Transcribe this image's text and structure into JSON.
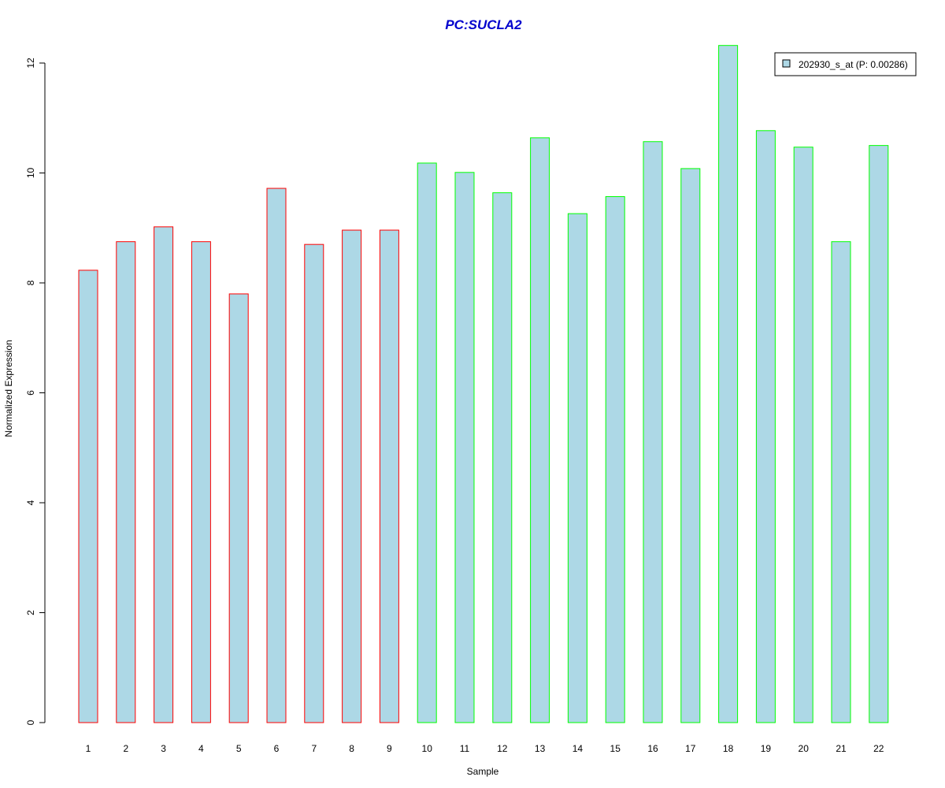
{
  "chart_data": {
    "type": "bar",
    "title": "PC:SUCLA2",
    "xlabel": "Sample",
    "ylabel": "Normalized Expression",
    "ylim": [
      0,
      12.3
    ],
    "yticks": [
      "0",
      "2",
      "4",
      "6",
      "8",
      "10",
      "12"
    ],
    "categories": [
      "1",
      "2",
      "3",
      "4",
      "5",
      "6",
      "7",
      "8",
      "9",
      "10",
      "11",
      "12",
      "13",
      "14",
      "15",
      "16",
      "17",
      "18",
      "19",
      "20",
      "21",
      "22"
    ],
    "values": [
      8.23,
      8.75,
      9.02,
      8.75,
      7.8,
      9.72,
      8.7,
      8.96,
      8.96,
      10.18,
      10.01,
      9.64,
      10.64,
      9.26,
      9.57,
      10.57,
      10.08,
      12.32,
      10.77,
      10.47,
      8.75,
      10.5
    ],
    "groups": [
      "red",
      "red",
      "red",
      "red",
      "red",
      "red",
      "red",
      "red",
      "red",
      "green",
      "green",
      "green",
      "green",
      "green",
      "green",
      "green",
      "green",
      "green",
      "green",
      "green",
      "green",
      "green"
    ],
    "legend": {
      "position": "top-right",
      "entries": [
        {
          "label": "202930_s_at (P: 0.00286)"
        }
      ]
    },
    "grid": false
  },
  "colors": {
    "bar_fill": "#add8e6",
    "border_red": "#ff0000",
    "border_green": "#00ff00",
    "title": "#0000cd"
  }
}
